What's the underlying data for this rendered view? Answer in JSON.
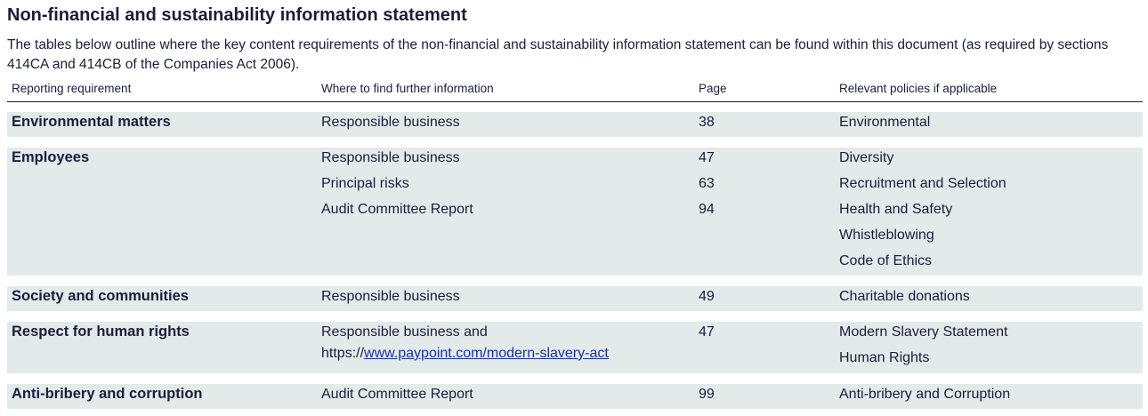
{
  "title": "Non-financial and sustainability information statement",
  "intro": "The tables below outline where the key content requirements of the non-financial and sustainability information statement can be found within this document (as required by sections 414CA and 414CB of the Companies Act 2006).",
  "headers": {
    "requirement": "Reporting requirement",
    "where": "Where to find further information",
    "page": "Page",
    "policies": "Relevant policies if applicable"
  },
  "rows": [
    {
      "requirement": "Environmental matters",
      "where": [
        "Responsible business"
      ],
      "pages": [
        "38"
      ],
      "policies": [
        "Environmental"
      ]
    },
    {
      "requirement": "Employees",
      "where": [
        "Responsible business",
        "Principal risks",
        "Audit Committee Report"
      ],
      "pages": [
        "47",
        "63",
        "94"
      ],
      "policies": [
        "Diversity",
        "Recruitment and Selection",
        "Health and Safety",
        "Whistleblowing",
        "Code of Ethics"
      ]
    },
    {
      "requirement": "Society and communities",
      "where": [
        "Responsible business"
      ],
      "pages": [
        "49"
      ],
      "policies": [
        "Charitable donations"
      ]
    },
    {
      "requirement": "Respect for human rights",
      "where": [
        "Responsible business and"
      ],
      "link_prefix": "https://",
      "link_text": "www.paypoint.com/modern-slavery-act",
      "pages": [
        "47"
      ],
      "policies": [
        "Modern Slavery Statement",
        "Human Rights"
      ]
    },
    {
      "requirement": "Anti-bribery and corruption",
      "where": [
        "Audit Committee Report"
      ],
      "pages": [
        "99"
      ],
      "policies": [
        "Anti-bribery and Corruption"
      ]
    }
  ]
}
